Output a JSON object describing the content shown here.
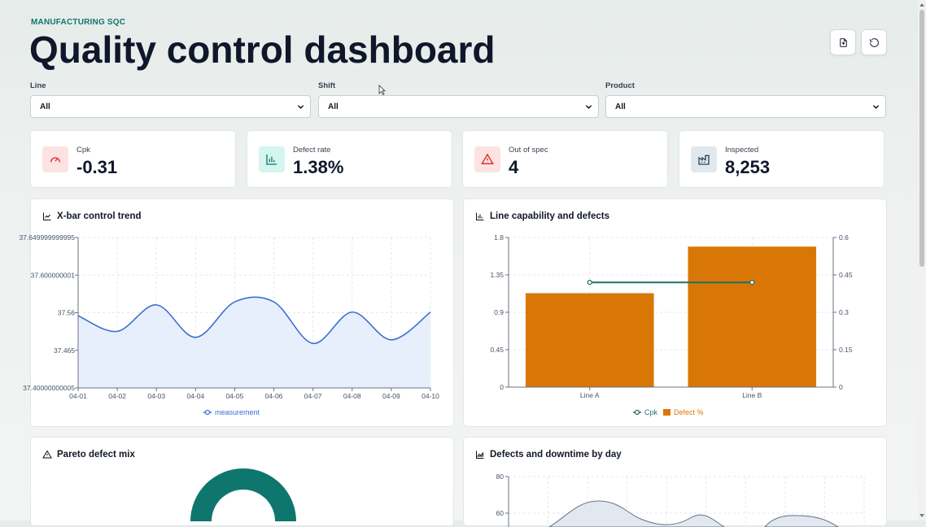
{
  "header": {
    "eyebrow": "MANUFACTURING SQC",
    "title": "Quality control dashboard",
    "actions": [
      {
        "name": "export-icon"
      },
      {
        "name": "refresh-icon"
      }
    ]
  },
  "filters": [
    {
      "label": "Line",
      "value": "All"
    },
    {
      "label": "Shift",
      "value": "All"
    },
    {
      "label": "Product",
      "value": "All"
    }
  ],
  "kpis": [
    {
      "label": "Cpk",
      "value": "-0.31",
      "icon": "gauge-icon",
      "color": "#dc2626",
      "bg": "#fde2e2"
    },
    {
      "label": "Defect rate",
      "value": "1.38%",
      "icon": "bar-chart-icon",
      "color": "#0f766e",
      "bg": "#d5f5ef"
    },
    {
      "label": "Out of spec",
      "value": "4",
      "icon": "warning-icon",
      "color": "#dc2626",
      "bg": "#fde2e2"
    },
    {
      "label": "Inspected",
      "value": "8,253",
      "icon": "factory-icon",
      "color": "#334155",
      "bg": "#e2e8f0"
    }
  ],
  "cards": {
    "xbar": {
      "title": "X-bar control trend",
      "icon": "line-chart-icon"
    },
    "capability": {
      "title": "Line capability and defects",
      "icon": "bar-chart-icon"
    },
    "pareto": {
      "title": "Pareto defect mix",
      "icon": "warning-icon"
    },
    "downtime": {
      "title": "Defects and downtime by day",
      "icon": "area-chart-icon"
    }
  },
  "chart_data": [
    {
      "type": "line",
      "x": [
        "04-01",
        "04-02",
        "04-03",
        "04-04",
        "04-05",
        "04-06",
        "04-07",
        "04-08",
        "04-09",
        "04-10"
      ],
      "series": [
        {
          "name": "measurement",
          "values": [
            37.52,
            37.494,
            37.538,
            37.484,
            37.543,
            37.543,
            37.474,
            37.526,
            37.48,
            37.526
          ],
          "color": "#3b6fd4"
        }
      ],
      "y_tick_labels": [
        "37.649999999995",
        "37.600000001",
        "37.56",
        "37.465",
        "37.40000000005"
      ],
      "ylim": [
        37.4,
        37.65
      ],
      "grid": true,
      "legend": "bottom"
    },
    {
      "type": "bar",
      "categories": [
        "Line A",
        "Line B"
      ],
      "series": [
        {
          "name": "Defect %",
          "values": [
            1.13,
            1.69
          ],
          "color": "#d97706",
          "axis": "left"
        },
        {
          "name": "Cpk",
          "values": [
            0.42,
            0.42
          ],
          "color": "#1f6f6a",
          "axis": "right",
          "type": "line"
        }
      ],
      "ylim_left": [
        0,
        1.8
      ],
      "ylim_right": [
        0,
        0.6
      ],
      "y_ticks_left": [
        "0",
        "0.45",
        "0.9",
        "1.35",
        "1.8"
      ],
      "y_ticks_right": [
        "0",
        "0.15",
        "0.3",
        "0.45",
        "0.6"
      ],
      "grid": true,
      "legend": "bottom"
    },
    {
      "type": "pie",
      "series": [
        {
          "name": "",
          "values": [],
          "color": "#0f766e"
        }
      ]
    },
    {
      "type": "area",
      "y_ticks": [
        "60",
        "80"
      ],
      "ylim": [
        40,
        80
      ]
    }
  ]
}
